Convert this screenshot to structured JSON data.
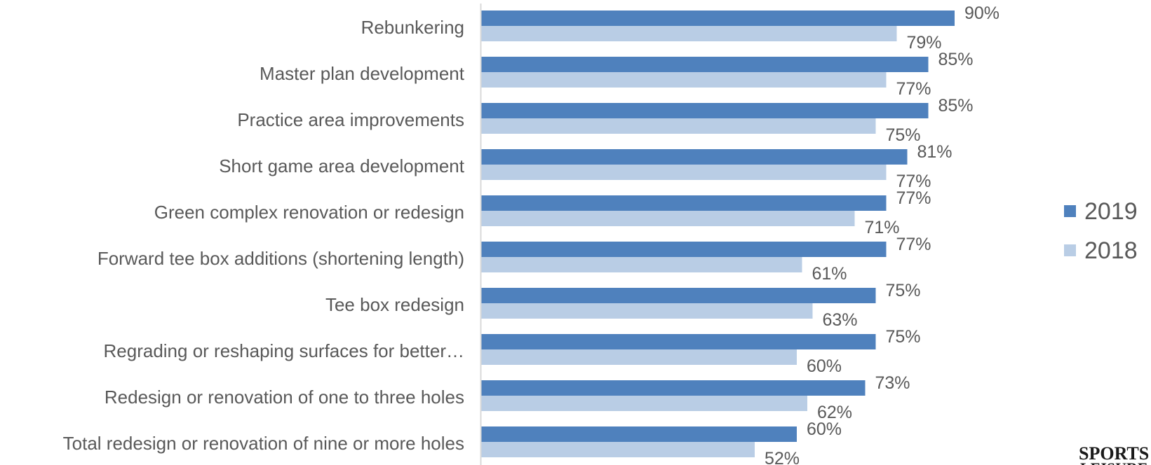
{
  "chart_data": {
    "type": "bar",
    "orientation": "horizontal",
    "categories": [
      "Rebunkering",
      "Master plan development",
      "Practice area improvements",
      "Short game area development",
      "Green complex renovation or redesign",
      "Forward tee box additions (shortening length)",
      "Tee box redesign",
      "Regrading or reshaping surfaces for better…",
      "Redesign or renovation of one to three holes",
      "Total redesign or renovation of nine or more holes"
    ],
    "series": [
      {
        "name": "2019",
        "color": "#4f81bd",
        "values": [
          90,
          85,
          85,
          81,
          77,
          77,
          75,
          75,
          73,
          60
        ],
        "labels": [
          "90%",
          "85%",
          "85%",
          "81%",
          "77%",
          "77%",
          "75%",
          "75%",
          "73%",
          "60%"
        ]
      },
      {
        "name": "2018",
        "color": "#b9cde5",
        "values": [
          79,
          77,
          75,
          77,
          71,
          61,
          63,
          60,
          62,
          52
        ],
        "labels": [
          "79%",
          "77%",
          "75%",
          "77%",
          "71%",
          "61%",
          "63%",
          "60%",
          "62%",
          "52%"
        ]
      }
    ],
    "xlim": [
      0,
      100
    ],
    "grid": false,
    "legend_position": "right"
  },
  "logo": {
    "line1": "SPORTS",
    "line2": "LEISURE"
  }
}
